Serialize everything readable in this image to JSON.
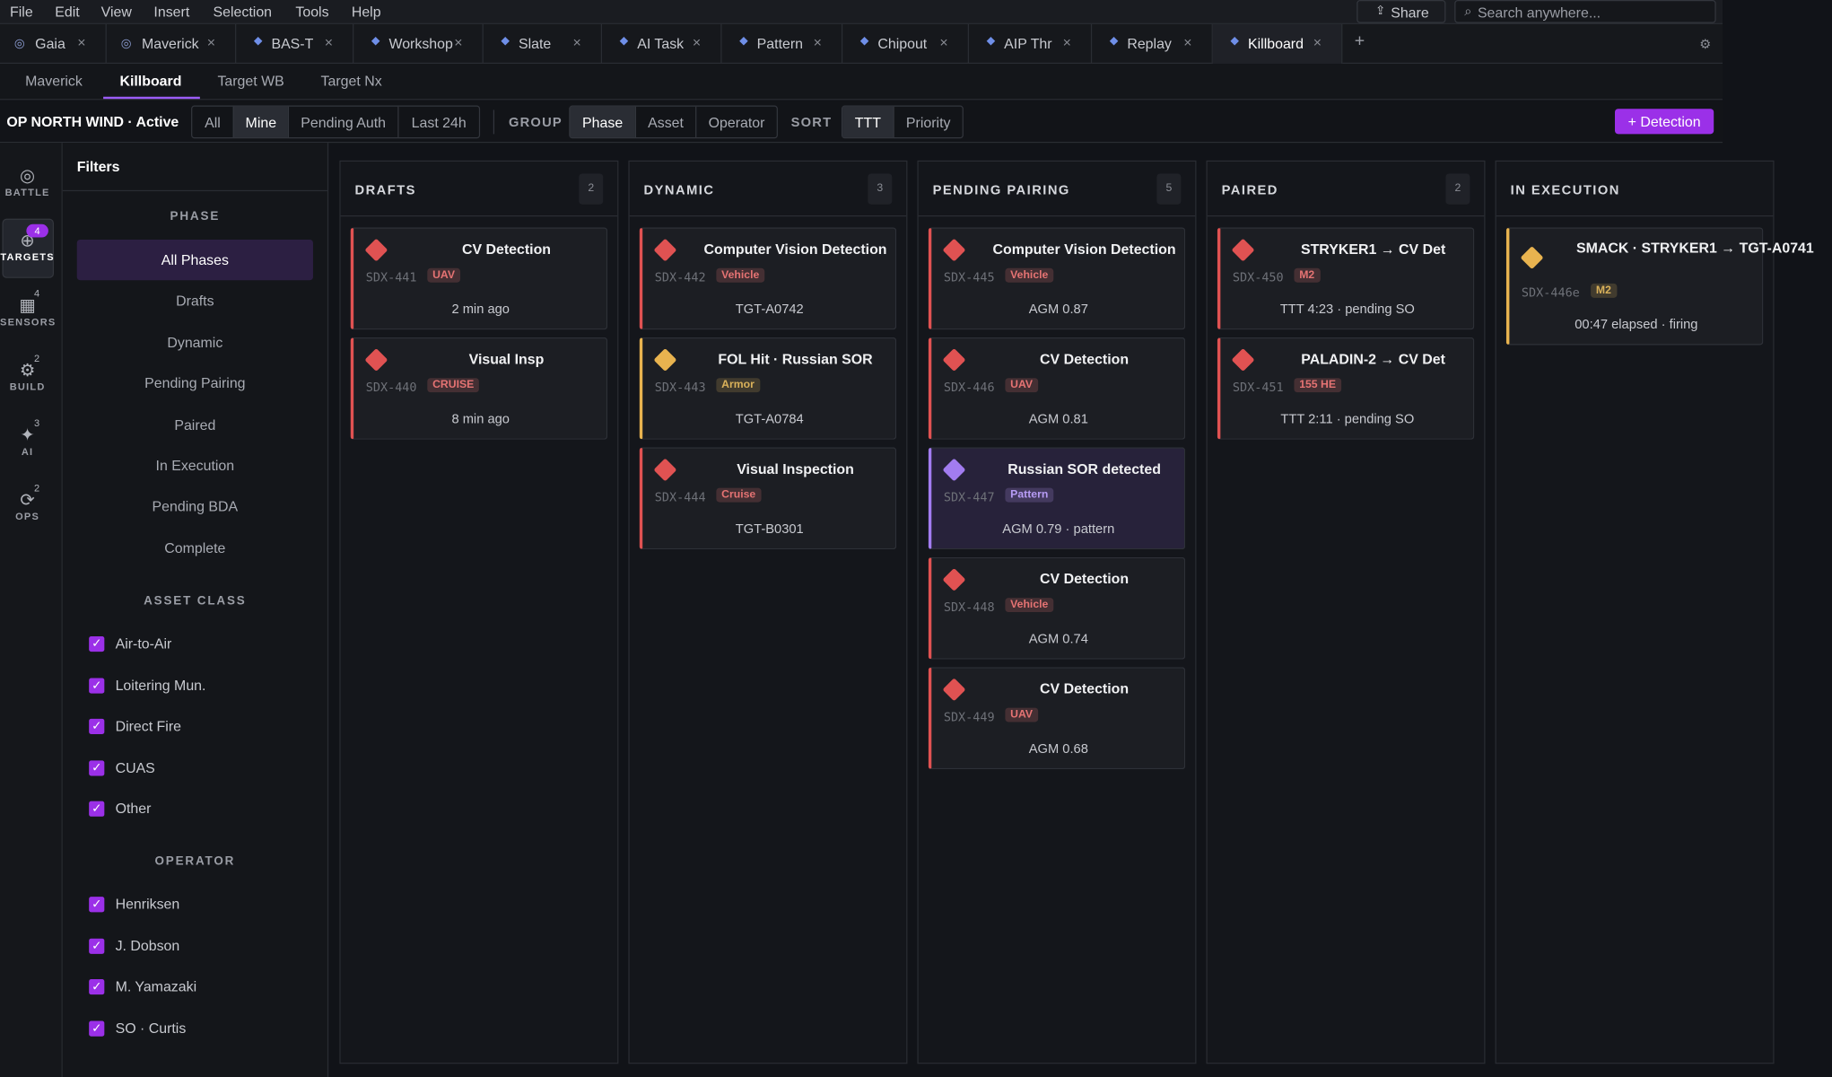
{
  "menu": [
    "File",
    "Edit",
    "View",
    "Insert",
    "Selection",
    "Tools",
    "Help"
  ],
  "share": "Share",
  "search_placeholder": "Search anywhere...",
  "tabs": [
    "Gaia",
    "Maverick",
    "BAS-T",
    "Workshop",
    "Slate",
    "AI Task",
    "Pattern",
    "Chipout",
    "AIP Thr",
    "Replay",
    "Killboard"
  ],
  "subtabs": [
    "Maverick",
    "Killboard",
    "Target WB",
    "Target Nx"
  ],
  "toolbar": {
    "op": "OP NORTH WIND · Active",
    "filters": [
      "All",
      "Mine",
      "Pending Auth",
      "Last 24h"
    ],
    "group_label": "GROUP",
    "group": [
      "Phase",
      "Asset",
      "Operator"
    ],
    "sort_label": "SORT",
    "sort": [
      "TTT",
      "Priority"
    ],
    "add": "+ Detection"
  },
  "rail": [
    {
      "label": "BATTLE"
    },
    {
      "label": "TARGETS",
      "badge": 4
    },
    {
      "label": "SENSORS",
      "badge": 4
    },
    {
      "label": "BUILD",
      "badge": 2
    },
    {
      "label": "AI",
      "badge": 3
    },
    {
      "label": "OPS",
      "badge": 2
    }
  ],
  "filters": {
    "title": "Filters",
    "phase_heading": "PHASE",
    "phases": [
      "All Phases",
      "Drafts",
      "Dynamic",
      "Pending Pairing",
      "Paired",
      "In Execution",
      "Pending BDA",
      "Complete"
    ],
    "asset_heading": "ASSET CLASS",
    "assets": [
      "Air-to-Air",
      "Loitering Mun.",
      "Direct Fire",
      "CUAS",
      "Other"
    ],
    "operator_heading": "OPERATOR",
    "operators": [
      "Henriksen",
      "J. Dobson",
      "M. Yamazaki",
      "SO · Curtis"
    ]
  },
  "columns": [
    {
      "title": "DRAFTS",
      "count": 2,
      "cards": [
        {
          "title": "CV Detection",
          "id": "SDX-441",
          "tag": "UAV",
          "detail": "2 min ago",
          "color": "#e05252",
          "tag_color": "#e57373"
        },
        {
          "title": "Visual Insp",
          "id": "SDX-440",
          "tag": "CRUISE",
          "detail": "8 min ago",
          "color": "#e05252",
          "tag_color": "#e57373"
        }
      ]
    },
    {
      "title": "DYNAMIC",
      "count": 3,
      "cards": [
        {
          "title": "Computer Vision Detection",
          "id": "SDX-442",
          "tag": "Vehicle",
          "detail": "TGT-A0742",
          "color": "#e05252",
          "tag_color": "#e57373"
        },
        {
          "title": "FOL Hit · Russian SOR",
          "id": "SDX-443",
          "tag": "Armor",
          "detail": "TGT-A0784",
          "color": "#e8b34f",
          "tag_color": "#d9b15a"
        },
        {
          "title": "Visual Inspection",
          "id": "SDX-444",
          "tag": "Cruise",
          "detail": "TGT-B0301",
          "color": "#e05252",
          "tag_color": "#e57373"
        }
      ]
    },
    {
      "title": "PENDING PAIRING",
      "count": 5,
      "cards": [
        {
          "title": "Computer Vision Detection",
          "id": "SDX-445",
          "tag": "Vehicle",
          "detail": "AGM 0.87",
          "color": "#e05252",
          "tag_color": "#e57373"
        },
        {
          "title": "CV Detection",
          "id": "SDX-446",
          "tag": "UAV",
          "detail": "AGM 0.81",
          "color": "#e05252",
          "tag_color": "#e57373"
        },
        {
          "title": "Russian SOR detected",
          "id": "SDX-447",
          "tag": "Pattern",
          "detail": "AGM 0.79 · pattern",
          "color": "#a27cf0",
          "tag_color": "#b79cf5"
        },
        {
          "title": "CV Detection",
          "id": "SDX-448",
          "tag": "Vehicle",
          "detail": "AGM 0.74",
          "color": "#e05252",
          "tag_color": "#e57373"
        },
        {
          "title": "CV Detection",
          "id": "SDX-449",
          "tag": "UAV",
          "detail": "AGM 0.68",
          "color": "#e05252",
          "tag_color": "#e57373"
        }
      ]
    },
    {
      "title": "PAIRED",
      "count": 2,
      "cards": [
        {
          "title": "STRYKER1 → CV Det",
          "id": "SDX-450",
          "tag": "M2",
          "detail": "TTT 4:23 · pending SO",
          "color": "#e05252",
          "tag_color": "#e57373"
        },
        {
          "title": "PALADIN-2 → CV Det",
          "id": "SDX-451",
          "tag": "155 HE",
          "detail": "TTT 2:11 · pending SO",
          "color": "#e05252",
          "tag_color": "#e57373"
        }
      ]
    },
    {
      "title": "IN EXECUTION",
      "cards": [
        {
          "title": "SMACK · STRYKER1 → TGT-A0741",
          "id": "SDX-446e",
          "tag": "M2",
          "detail": "00:47 elapsed · firing",
          "color": "#e8b34f",
          "tag_color": "#d9b15a"
        }
      ]
    }
  ]
}
